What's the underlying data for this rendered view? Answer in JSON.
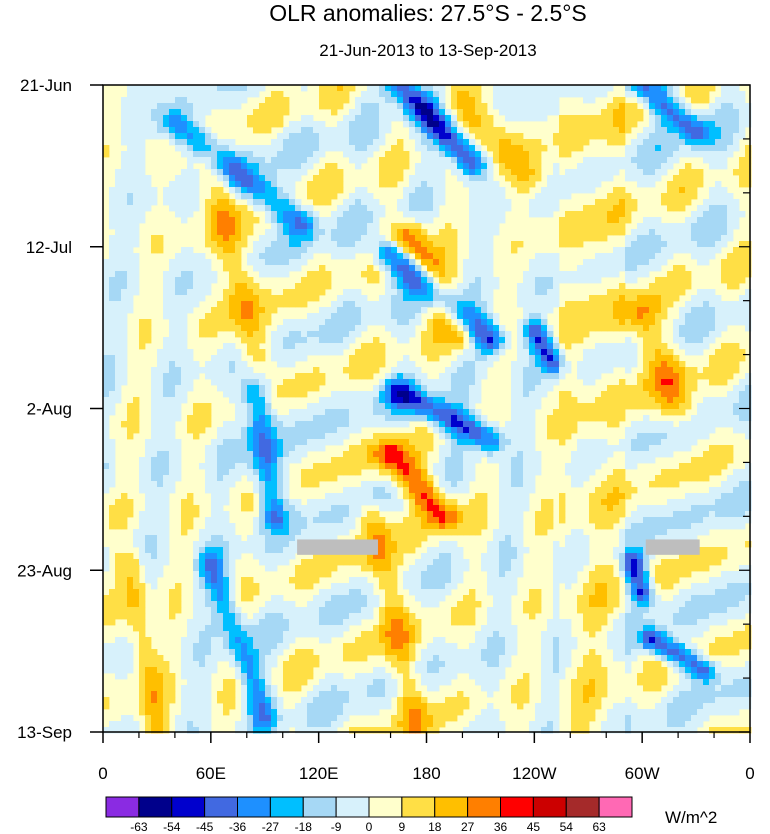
{
  "chart_data": {
    "type": "heatmap",
    "title": "OLR anomalies: 27.5°S - 2.5°S",
    "subtitle": "21-Jun-2013 to 13-Sep-2013",
    "x_ticks": [
      {
        "lon": 0,
        "label": "0"
      },
      {
        "lon": 60,
        "label": "60E"
      },
      {
        "lon": 120,
        "label": "120E"
      },
      {
        "lon": 180,
        "label": "180"
      },
      {
        "lon": 240,
        "label": "120W"
      },
      {
        "lon": 300,
        "label": "60W"
      },
      {
        "lon": 360,
        "label": "0"
      }
    ],
    "xlim": [
      0,
      360
    ],
    "time_ticks": [
      {
        "day": 0,
        "label": "21-Jun"
      },
      {
        "day": 21,
        "label": "12-Jul"
      },
      {
        "day": 42,
        "label": "2-Aug"
      },
      {
        "day": 63,
        "label": "23-Aug"
      },
      {
        "day": 84,
        "label": "13-Sep"
      }
    ],
    "time_range_days": [
      0,
      84
    ],
    "minor_tick_days": 7,
    "units": "W/m^2",
    "levels": [
      -63,
      -54,
      -45,
      -36,
      -27,
      -18,
      -9,
      0,
      9,
      18,
      27,
      36,
      45,
      54,
      63
    ],
    "colorbar_labels": [
      "-63",
      "-54",
      "-45",
      "-36",
      "-27",
      "-18",
      "-9",
      "0",
      "9",
      "18",
      "27",
      "36",
      "45",
      "54",
      "63"
    ],
    "colors": [
      "#8a2be2",
      "#00008b",
      "#0000cd",
      "#4169e1",
      "#1e90ff",
      "#00bfff",
      "#a6d8f5",
      "#d7f1fb",
      "#ffffcc",
      "#ffdf45",
      "#ffbf00",
      "#ff7f00",
      "#ff0000",
      "#cc0000",
      "#a52a2a",
      "#ff69b4"
    ],
    "missing_color": "#bebebe",
    "missing_regions": [
      {
        "lon_start": 108,
        "lon_end": 153,
        "day_start": 59,
        "day_end": 61
      },
      {
        "lon_start": 302,
        "lon_end": 332,
        "day_start": 59,
        "day_end": 61
      }
    ],
    "features": [
      {
        "lon1": 165,
        "day1": 0,
        "lon2": 205,
        "day2": 10,
        "value": -50,
        "width": 10
      },
      {
        "lon1": 160,
        "day1": 22,
        "lon2": 215,
        "day2": 33,
        "value": -55,
        "width": 11
      },
      {
        "lon1": 165,
        "day1": 40,
        "lon2": 215,
        "day2": 46,
        "value": -45,
        "width": 10
      },
      {
        "lon1": 40,
        "day1": 5,
        "lon2": 110,
        "day2": 18,
        "value": -35,
        "width": 11
      },
      {
        "lon1": 85,
        "day1": 40,
        "lon2": 95,
        "day2": 56,
        "value": -35,
        "width": 10
      },
      {
        "lon1": 240,
        "day1": 32,
        "lon2": 250,
        "day2": 36,
        "value": -45,
        "width": 8
      },
      {
        "lon1": 295,
        "day1": 62,
        "lon2": 300,
        "day2": 66,
        "value": -50,
        "width": 8
      },
      {
        "lon1": 305,
        "day1": 72,
        "lon2": 335,
        "day2": 76,
        "value": -45,
        "width": 8
      },
      {
        "lon1": 300,
        "day1": 0,
        "lon2": 330,
        "day2": 6,
        "value": -40,
        "width": 10
      },
      {
        "lon1": 60,
        "day1": 62,
        "lon2": 90,
        "day2": 82,
        "value": -30,
        "width": 9
      },
      {
        "lon1": 170,
        "day1": 20,
        "lon2": 200,
        "day2": 32,
        "value": 40,
        "width": 13
      },
      {
        "lon1": 160,
        "day1": 48,
        "lon2": 190,
        "day2": 56,
        "value": 38,
        "width": 12
      },
      {
        "lon1": 150,
        "day1": 56,
        "lon2": 175,
        "day2": 84,
        "value": 22,
        "width": 11
      },
      {
        "lon1": 60,
        "day1": 10,
        "lon2": 85,
        "day2": 35,
        "value": 22,
        "width": 12
      },
      {
        "lon1": 300,
        "day1": 30,
        "lon2": 320,
        "day2": 42,
        "value": 24,
        "width": 14
      },
      {
        "lon1": 200,
        "day1": 2,
        "lon2": 235,
        "day2": 12,
        "value": 20,
        "width": 14
      },
      {
        "lon1": 15,
        "day1": 62,
        "lon2": 30,
        "day2": 84,
        "value": 20,
        "width": 10
      }
    ]
  }
}
